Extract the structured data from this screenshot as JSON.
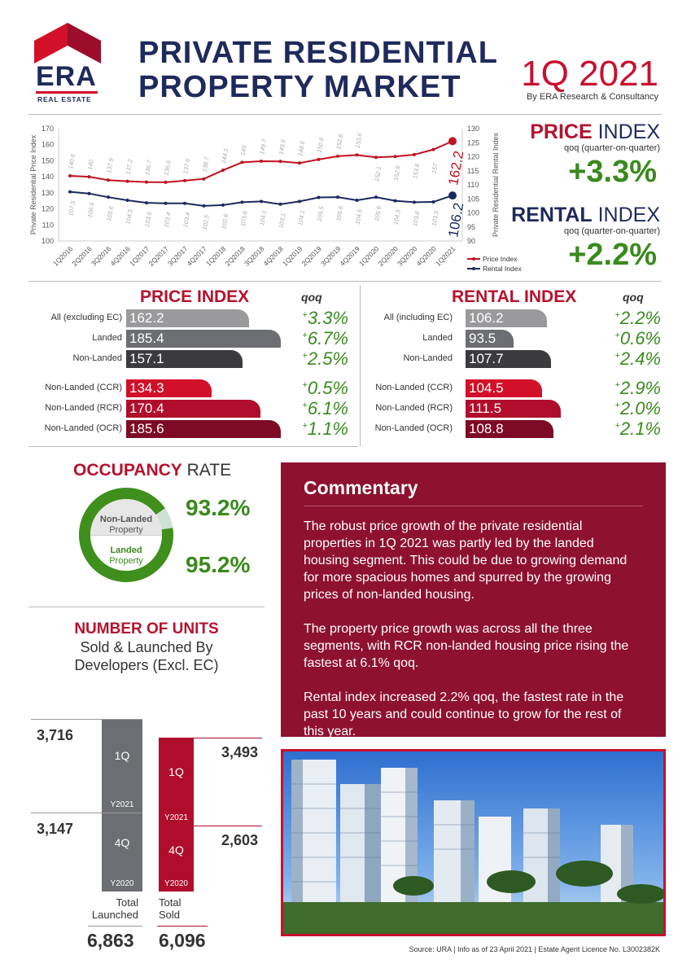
{
  "header": {
    "logo_text": "ERA",
    "logo_subtext": "REAL ESTATE",
    "title_line1": "PRIVATE RESIDENTIAL",
    "title_line2": "PROPERTY MARKET",
    "period": "1Q 2021",
    "byline": "By ERA Research & Consultancy"
  },
  "summary": {
    "price_title_bold": "PRICE",
    "price_title_rest": " INDEX",
    "price_sub": "qoq (quarter-on-quarter)",
    "price_change": "+3.3%",
    "rental_title_bold": "RENTAL",
    "rental_title_rest": " INDEX",
    "rental_sub": "qoq (quarter-on-quarter)",
    "rental_change": "+2.2%"
  },
  "chart_data": [
    {
      "type": "line",
      "ylabel": "Private Residential Price Index",
      "y2label": "Private Residential Rental Index",
      "ylim": [
        100,
        170
      ],
      "y2lim": [
        90,
        130
      ],
      "yticks": [
        "100",
        "110",
        "120",
        "130",
        "140",
        "150",
        "160",
        "170"
      ],
      "y2ticks": [
        "90",
        "95",
        "100",
        "105",
        "110",
        "115",
        "120",
        "125",
        "130"
      ],
      "categories": [
        "1Q2016",
        "2Q2016",
        "3Q2016",
        "4Q2016",
        "1Q2017",
        "2Q2017",
        "3Q2017",
        "4Q2017",
        "1Q2018",
        "2Q2018",
        "3Q2018",
        "4Q2018",
        "1Q2019",
        "2Q2019",
        "3Q2019",
        "4Q2019",
        "1Q2020",
        "2Q2020",
        "3Q2020",
        "4Q2020",
        "1Q2021"
      ],
      "series": [
        {
          "name": "Price Index",
          "axis": "left",
          "color": "#c0121f",
          "values": [
            140.6,
            140,
            137.9,
            137.2,
            136.7,
            136.6,
            137.6,
            138.7,
            144.1,
            149,
            149.7,
            149.6,
            148.6,
            150.8,
            152.8,
            153.6,
            152.1,
            152.6,
            153.8,
            157,
            162.2
          ],
          "labels": [
            "140.6",
            "140",
            "137.9",
            "137.2",
            "136.7",
            "136.6",
            "137.6",
            "138.7",
            "144.1",
            "149",
            "149.7",
            "149.6",
            "148.6",
            "150.8",
            "152.8",
            "153.6",
            "152.1",
            "152.6",
            "153.8",
            "157",
            "162.2"
          ]
        },
        {
          "name": "Rental Index",
          "axis": "right",
          "color": "#1a2a5e",
          "values": [
            107.5,
            106.9,
            105.6,
            104.5,
            103.6,
            103.4,
            103.4,
            102.5,
            102.8,
            103.8,
            104.1,
            103.1,
            104.1,
            105.5,
            105.6,
            104.5,
            105.6,
            104.3,
            103.8,
            103.9,
            106.2
          ],
          "labels": [
            "107.5",
            "106.9",
            "105.6",
            "104.5",
            "103.6",
            "103.4",
            "103.4",
            "102.5",
            "102.8",
            "103.8",
            "104.1",
            "103.1",
            "104.1",
            "105.5",
            "105.6",
            "104.5",
            "105.6",
            "104.3",
            "103.8",
            "103.9",
            "106.2"
          ]
        }
      ],
      "legend_position": "bottom-right"
    },
    {
      "type": "bar",
      "title": "PRICE INDEX",
      "qoq_header": "qoq",
      "rows": [
        {
          "label": "All (excluding EC)",
          "value": "162.2",
          "v": 162.2,
          "qoq": "3.3%",
          "color": "#9a9a9c"
        },
        {
          "label": "Landed",
          "value": "185.4",
          "v": 185.4,
          "qoq": "6.7%",
          "color": "#6d6e71"
        },
        {
          "label": "Non-Landed",
          "value": "157.1",
          "v": 157.1,
          "qoq": "2.5%",
          "color": "#3b3b3d"
        },
        {
          "label": "Non-Landed (CCR)",
          "value": "134.3",
          "v": 134.3,
          "qoq": "0.5%",
          "color": "#d2102a"
        },
        {
          "label": "Non-Landed (RCR)",
          "value": "170.4",
          "v": 170.4,
          "qoq": "6.1%",
          "color": "#b00d2c"
        },
        {
          "label": "Non-Landed (OCR)",
          "value": "185.6",
          "v": 185.6,
          "qoq": "1.1%",
          "color": "#7d0b25"
        }
      ]
    },
    {
      "type": "bar",
      "title": "RENTAL INDEX",
      "qoq_header": "qoq",
      "rows": [
        {
          "label": "All (including EC)",
          "value": "106.2",
          "v": 106.2,
          "qoq": "2.2%",
          "color": "#9a9a9c"
        },
        {
          "label": "Landed",
          "value": "93.5",
          "v": 93.5,
          "qoq": "0.6%",
          "color": "#6d6e71"
        },
        {
          "label": "Non-Landed",
          "value": "107.7",
          "v": 107.7,
          "qoq": "2.4%",
          "color": "#3b3b3d"
        },
        {
          "label": "Non-Landed (CCR)",
          "value": "104.5",
          "v": 104.5,
          "qoq": "2.9%",
          "color": "#d2102a"
        },
        {
          "label": "Non-Landed (RCR)",
          "value": "111.5",
          "v": 111.5,
          "qoq": "2.0%",
          "color": "#b00d2c"
        },
        {
          "label": "Non-Landed (OCR)",
          "value": "108.8",
          "v": 108.8,
          "qoq": "2.1%",
          "color": "#7d0b25"
        }
      ]
    },
    {
      "type": "pie",
      "title_bold": "OCCUPANCY",
      "title_rest": " RATE",
      "slices": [
        {
          "name_line1": "Non-Landed",
          "name_line2": "Property",
          "value": 93.2,
          "label": "93.2%"
        },
        {
          "name_line1": "Landed",
          "name_line2": "Property",
          "value": 95.2,
          "label": "95.2%"
        }
      ]
    },
    {
      "type": "bar",
      "title": "NUMBER OF UNITS",
      "subtitle_line1": "Sold & Launched By",
      "subtitle_line2": "Developers (Excl. EC)",
      "stacks": [
        {
          "name_line1": "Total",
          "name_line2": "Launched",
          "total": "6,863",
          "segments": [
            {
              "quarter": "4Q",
              "year": "Y2020",
              "value": 3147,
              "label": "3,147"
            },
            {
              "quarter": "1Q",
              "year": "Y2021",
              "value": 3716,
              "label": "3,716"
            }
          ]
        },
        {
          "name_line1": "Total",
          "name_line2": "Sold",
          "total": "6,096",
          "segments": [
            {
              "quarter": "4Q",
              "year": "Y2020",
              "value": 2603,
              "label": "2,603"
            },
            {
              "quarter": "1Q",
              "year": "Y2021",
              "value": 3493,
              "label": "3,493"
            }
          ]
        }
      ]
    }
  ],
  "commentary": {
    "title": "Commentary",
    "paragraphs": [
      "The robust price growth of the private residential properties in 1Q 2021 was partly led by the landed housing segment. This could be due to growing demand for more spacious homes and spurred by the growing prices of non-landed housing.",
      "The property price growth was across all the three segments, with RCR non-landed housing price rising the fastest at 6.1% qoq.",
      "Rental index increased 2.2% qoq, the fastest rate in the past 10 years and could continue to grow for the rest of this year."
    ]
  },
  "footer": {
    "source": "Source: URA | Info as of 23 April 2021 | Estate Agent Licence No. L3002382K"
  },
  "colors": {
    "navy": "#1f2a5c",
    "red": "#c8102e",
    "green": "#3a8a1e",
    "maroon": "#8e1130"
  }
}
